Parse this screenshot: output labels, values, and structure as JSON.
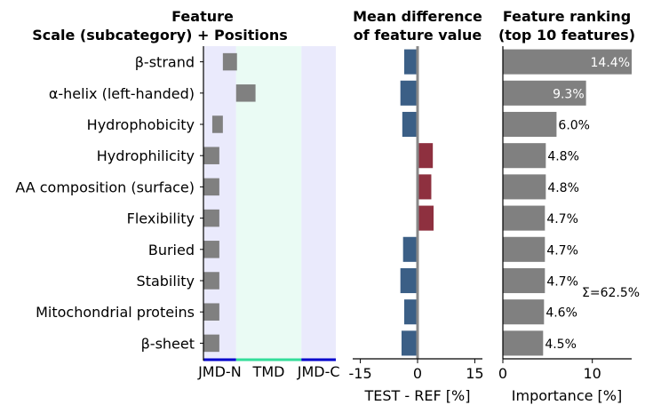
{
  "chart_data": [
    {
      "type": "bar",
      "panel": "feature-positions",
      "title": "Feature\nScale (subcategory)  +  Positions",
      "features": [
        "β-strand",
        "α-helix (left-handed)",
        "Hydrophobicity",
        "Hydrophilicity",
        "AA composition (surface)",
        "Flexibility",
        "Buried",
        "Stability",
        "Mitochondrial proteins",
        "β-sheet"
      ],
      "regions": [
        {
          "label": "JMD-N",
          "color": "#eaeafc",
          "axis_color": "#0000cc"
        },
        {
          "label": "TMD",
          "color": "#eafbf4",
          "axis_color": "#33dd99"
        },
        {
          "label": "JMD-C",
          "color": "#eaeafc",
          "axis_color": "#0000cc"
        }
      ],
      "region_span": [
        0,
        150
      ],
      "region_bounds": [
        0,
        37,
        111,
        150
      ],
      "position_bars": [
        [
          22,
          38
        ],
        [
          37,
          59
        ],
        [
          10,
          22
        ],
        [
          0,
          18
        ],
        [
          0,
          18
        ],
        [
          0,
          18
        ],
        [
          0,
          18
        ],
        [
          0,
          18
        ],
        [
          0,
          18
        ],
        [
          0,
          18
        ]
      ],
      "bar_color": "#808080"
    },
    {
      "type": "bar",
      "panel": "mean-difference",
      "title": "Mean difference\nof feature value",
      "xlabel": "TEST - REF [%]",
      "xticks": [
        "-15",
        "0",
        "15"
      ],
      "xlim": [
        -17,
        17
      ],
      "values": [
        -3.5,
        -4.5,
        -4.0,
        4.0,
        3.6,
        4.2,
        -3.8,
        -4.5,
        -3.5,
        -4.2
      ],
      "colors": {
        "negative": "#3b5f86",
        "positive": "#8e303f",
        "zero_line": "#888888"
      }
    },
    {
      "type": "bar",
      "panel": "feature-ranking",
      "title": "Feature ranking\n(top 10 features)",
      "xlabel": "Importance [%]",
      "xticks": [
        "0",
        "10"
      ],
      "xlim": [
        0,
        14.4
      ],
      "values": [
        14.4,
        9.3,
        6.0,
        4.8,
        4.8,
        4.7,
        4.7,
        4.7,
        4.6,
        4.5
      ],
      "labels": [
        "14.4%",
        "9.3%",
        "6.0%",
        "4.8%",
        "4.8%",
        "4.7%",
        "4.7%",
        "4.7%",
        "4.6%",
        "4.5%"
      ],
      "sum_label": "Σ=62.5%",
      "bar_color": "#808080"
    }
  ]
}
